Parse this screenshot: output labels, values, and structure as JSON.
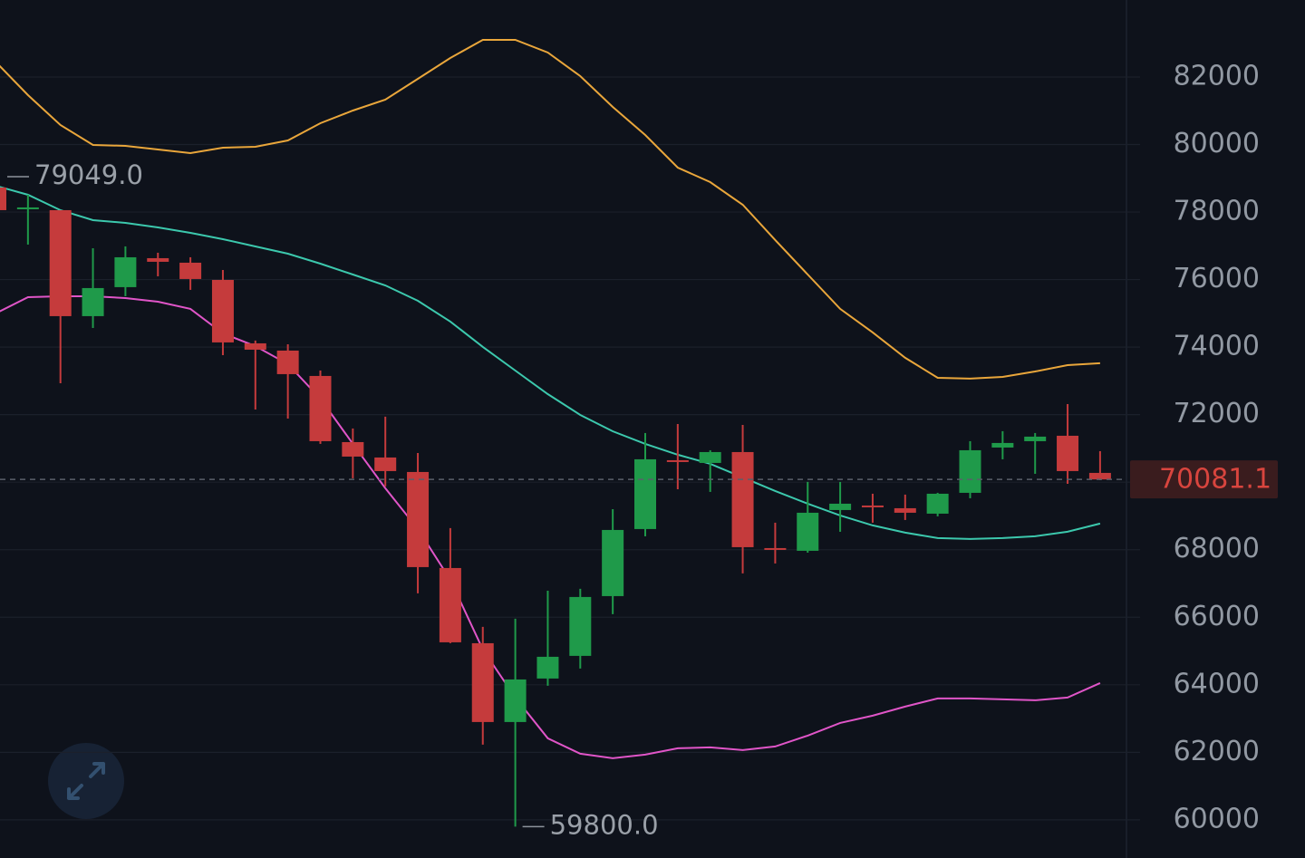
{
  "chart_data": {
    "type": "candlestick",
    "open": [
      78727,
      78083,
      78056,
      74917,
      75776,
      76634,
      76500,
      75990,
      74112,
      73897,
      73146,
      71187,
      70731,
      70302,
      67458,
      65231,
      62897,
      64185,
      64856,
      66626,
      68612,
      70651,
      70570,
      70892,
      68048,
      67968,
      69175,
      69309,
      69229,
      69068,
      69685,
      71026,
      71214,
      71375,
      70275
    ],
    "high": [
      79049,
      78512,
      78056,
      76929,
      76983,
      76795,
      76661,
      76285,
      74193,
      74085,
      73307,
      71590,
      71939,
      70865,
      68639,
      65714,
      65956,
      66787,
      66841,
      69202,
      71456,
      71724,
      70946,
      71697,
      68800,
      70007,
      70007,
      69658,
      69632,
      69685,
      71214,
      71510,
      71456,
      72314,
      70919
    ],
    "low": [
      78056,
      77037,
      72931,
      74568,
      75507,
      76097,
      75695,
      73763,
      72153,
      71885,
      71134,
      70114,
      69873,
      66707,
      65231,
      62226,
      59800,
      63970,
      64480,
      66090,
      68397,
      69792,
      69712,
      67297,
      67592,
      67914,
      68531,
      68800,
      68880,
      68988,
      69524,
      70678,
      70248,
      69953,
      70060
    ],
    "close": [
      78056,
      78137,
      74917,
      75749,
      76661,
      76527,
      76017,
      74139,
      73924,
      73200,
      71214,
      70758,
      70329,
      67485,
      65258,
      62897,
      64158,
      64829,
      66600,
      68585,
      70678,
      70597,
      70892,
      68075,
      67995,
      69095,
      69363,
      69256,
      69095,
      69658,
      70946,
      71161,
      71349,
      70329,
      70081.1
    ],
    "up_color": "#1f9a4a",
    "down_color": "#c53b3c",
    "series": [
      {
        "color": "#e9a63b",
        "values": [
          82456,
          81463,
          80578,
          79988,
          79961,
          79854,
          79746,
          79907,
          79934,
          80122,
          80632,
          81007,
          81329,
          81946,
          82563,
          83100,
          83100,
          82724,
          82027,
          81115,
          80283,
          79317,
          78888,
          78217,
          77171,
          76151,
          75132,
          74434,
          73683,
          73092,
          73066,
          73119,
          73280,
          73468,
          73522
        ]
      },
      {
        "color": "#3cc8ad",
        "values": [
          78780,
          78512,
          78056,
          77761,
          77680,
          77546,
          77385,
          77197,
          76983,
          76768,
          76473,
          76151,
          75829,
          75373,
          74756,
          74005,
          73307,
          72609,
          71992,
          71509,
          71134,
          70812,
          70544,
          70141,
          69739,
          69363,
          69014,
          68719,
          68505,
          68344,
          68317,
          68344,
          68397,
          68531,
          68773
        ]
      },
      {
        "color": "#e055c8",
        "values": [
          74997,
          75480,
          75507,
          75507,
          75453,
          75346,
          75132,
          74407,
          74031,
          73495,
          72475,
          71134,
          69819,
          68612,
          67109,
          65043,
          63621,
          62414,
          61958,
          61824,
          61931,
          62119,
          62146,
          62065,
          62173,
          62495,
          62870,
          63085,
          63353,
          63595,
          63595,
          63568,
          63541,
          63621,
          64051
        ]
      }
    ],
    "ylim": [
      58870,
      84280
    ],
    "yticks": [
      60000,
      62000,
      64000,
      66000,
      68000,
      70000,
      72000,
      74000,
      76000,
      78000,
      80000,
      82000
    ],
    "grid": true,
    "last_price": 70081.1,
    "annotations": [
      {
        "value": 79049,
        "label": "79049.0"
      },
      {
        "value": 59800,
        "label": "59800.0"
      }
    ]
  }
}
